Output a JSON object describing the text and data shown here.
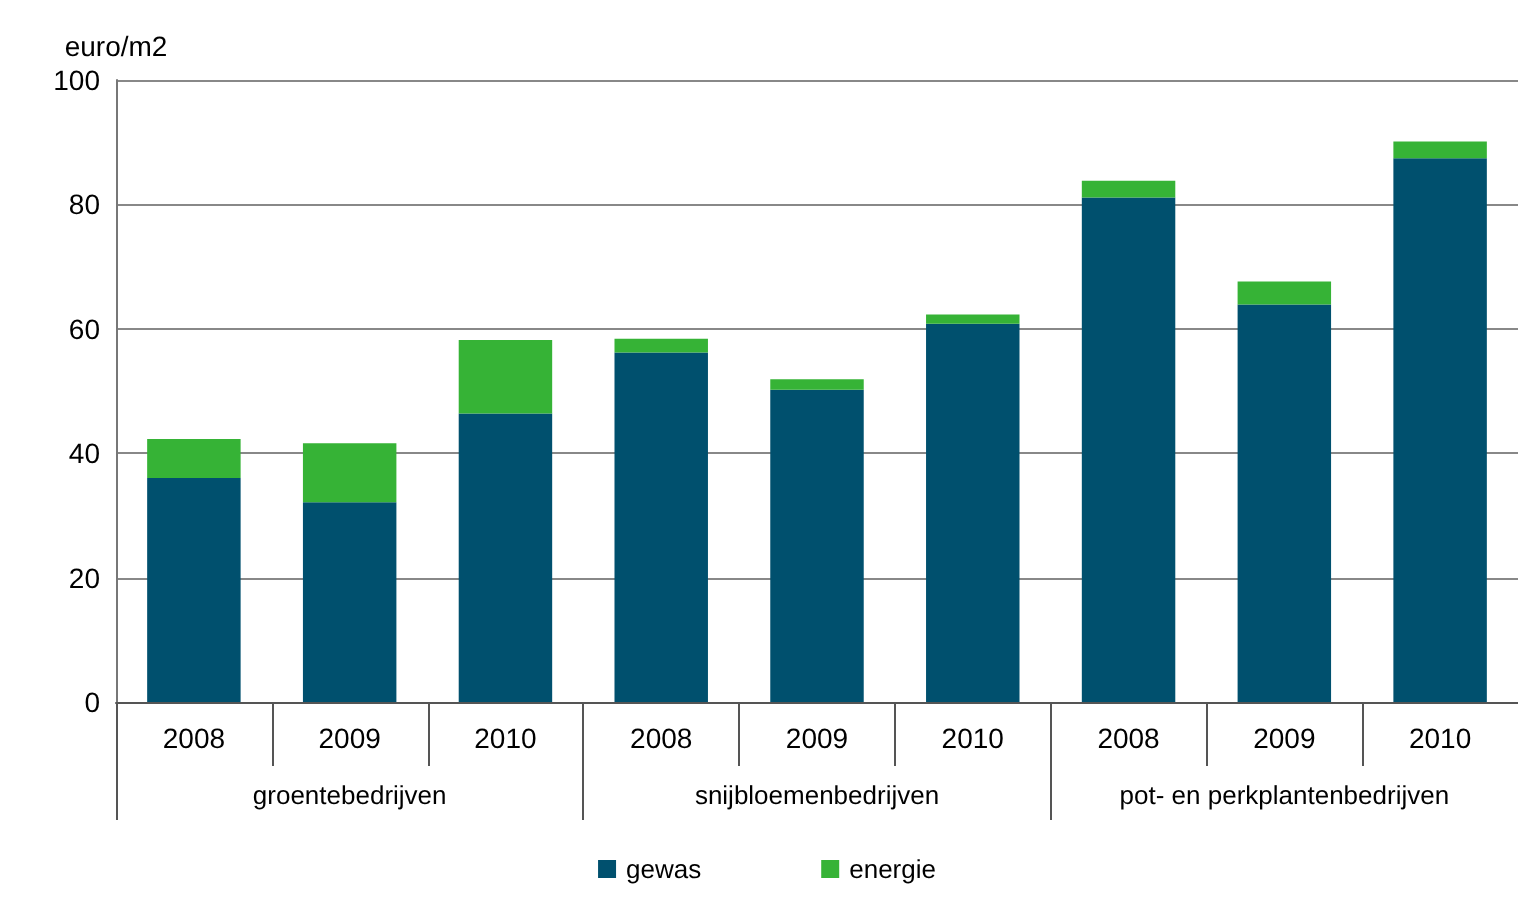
{
  "chart_data": {
    "type": "bar",
    "stacked": true,
    "ylabel": "euro/m2",
    "categories": [
      "2008",
      "2009",
      "2010",
      "2008",
      "2009",
      "2010",
      "2008",
      "2009",
      "2010"
    ],
    "annotations": [
      "groentebedrijven",
      "snijbloemenbedrijven",
      "pot- en perkplantenbedrijven"
    ],
    "series": [
      {
        "name": "gewas",
        "color": "#00506e",
        "values": [
          36.0,
          32.1,
          46.4,
          56.2,
          50.2,
          60.8,
          81.1,
          63.9,
          87.4
        ]
      },
      {
        "name": "energie",
        "color": "#36b336",
        "values": [
          6.3,
          9.5,
          11.8,
          2.2,
          1.7,
          1.5,
          2.7,
          3.7,
          2.7
        ]
      }
    ],
    "ylim": [
      0,
      100
    ],
    "yticks": [
      0,
      20,
      40,
      60,
      80,
      100
    ],
    "grid": "y",
    "legend": "bottom"
  }
}
